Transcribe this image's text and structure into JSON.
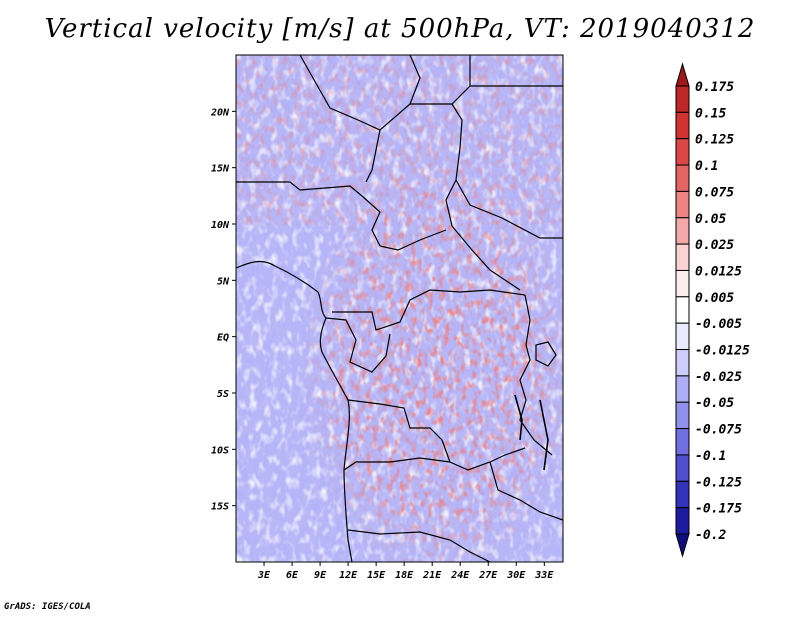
{
  "title": "Vertical velocity [m/s] at 500hPa, VT: 2019040312",
  "credit": "GrADS: IGES/COLA",
  "map": {
    "lon_range": [
      0,
      35
    ],
    "lat_range": [
      -20,
      25
    ],
    "lat_ticks": [
      {
        "value": 20,
        "label": "20N"
      },
      {
        "value": 15,
        "label": "15N"
      },
      {
        "value": 10,
        "label": "10N"
      },
      {
        "value": 5,
        "label": "5N"
      },
      {
        "value": 0,
        "label": "EQ"
      },
      {
        "value": -5,
        "label": "5S"
      },
      {
        "value": -10,
        "label": "10S"
      },
      {
        "value": -15,
        "label": "15S"
      }
    ],
    "lon_ticks": [
      {
        "value": 3,
        "label": "3E"
      },
      {
        "value": 6,
        "label": "6E"
      },
      {
        "value": 9,
        "label": "9E"
      },
      {
        "value": 12,
        "label": "12E"
      },
      {
        "value": 15,
        "label": "15E"
      },
      {
        "value": 18,
        "label": "18E"
      },
      {
        "value": 21,
        "label": "21E"
      },
      {
        "value": 24,
        "label": "24E"
      },
      {
        "value": 27,
        "label": "27E"
      },
      {
        "value": 30,
        "label": "30E"
      },
      {
        "value": 33,
        "label": "33E"
      }
    ]
  },
  "colorbar": {
    "levels": [
      "0.175",
      "0.15",
      "0.125",
      "0.1",
      "0.075",
      "0.05",
      "0.025",
      "0.0125",
      "0.005",
      "-0.005",
      "-0.0125",
      "-0.025",
      "-0.05",
      "-0.075",
      "-0.1",
      "-0.125",
      "-0.175",
      "-0.2"
    ],
    "colors": [
      "#a01818",
      "#bf2626",
      "#d23232",
      "#dc4646",
      "#e46464",
      "#ec8484",
      "#f4a8a8",
      "#fad2d2",
      "#fdeeee",
      "#ffffff",
      "#eaeafe",
      "#cdcdfb",
      "#aeaef6",
      "#9090ee",
      "#7070e2",
      "#4f4fd2",
      "#3232bb",
      "#1c1ca0",
      "#0e0e80"
    ]
  }
}
